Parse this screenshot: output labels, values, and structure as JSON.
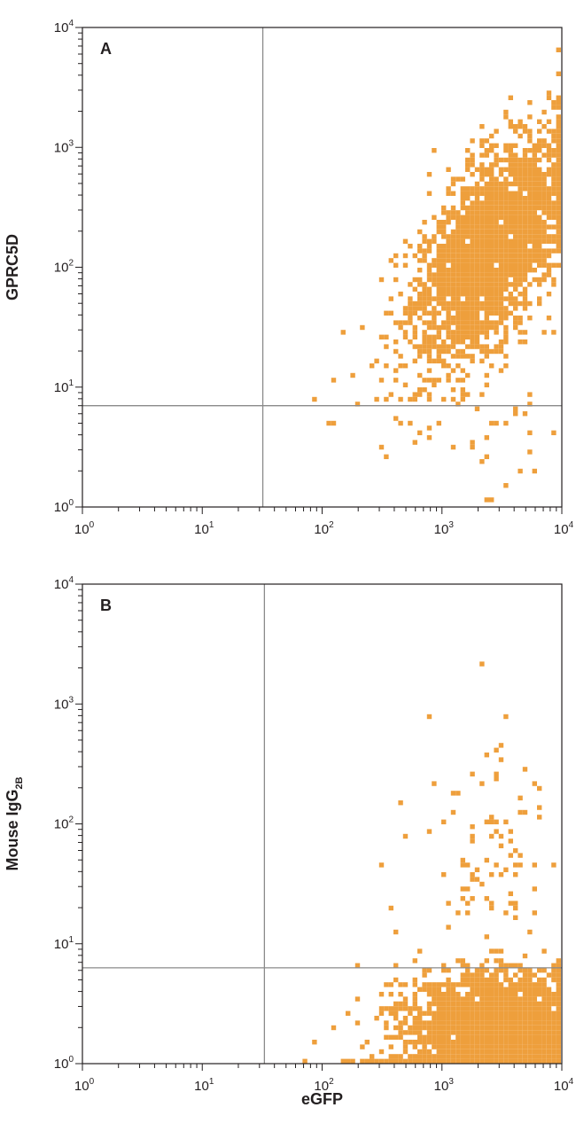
{
  "chart_data": [
    {
      "panel_label": "A",
      "type": "scatter",
      "plot_style": "flow cytometry density dot plot",
      "xscale": "log",
      "yscale": "log",
      "xlim": [
        1,
        10000
      ],
      "ylim": [
        1,
        10000
      ],
      "xticks": [
        1,
        10,
        100,
        1000,
        10000
      ],
      "yticks": [
        1,
        10,
        100,
        1000,
        10000
      ],
      "tick_labels": [
        {
          "base": "10",
          "exp": "0"
        },
        {
          "base": "10",
          "exp": "1"
        },
        {
          "base": "10",
          "exp": "2"
        },
        {
          "base": "10",
          "exp": "3"
        },
        {
          "base": "10",
          "exp": "4"
        }
      ],
      "xlabel": "",
      "ylabel": "GPRC5D",
      "ylabel_sub": "",
      "quadrant_gates": {
        "x": 32,
        "y": 7
      },
      "dot_color": "#ee9f3c",
      "populations": [
        {
          "name_hidden": true,
          "center_x_log": 3.4,
          "center_y_log": 2.15,
          "spread_x": 0.32,
          "spread_y": 0.38,
          "slope": 0.85,
          "count": 2600,
          "xmax_log": 4.0,
          "ymin_log": 0.9
        },
        {
          "center_x_log": 3.2,
          "center_y_log": 0.6,
          "spread_x": 0.4,
          "spread_y": 0.25,
          "slope": 0,
          "count": 40,
          "xmax_log": 4.0,
          "ymin_log": 0.0
        }
      ],
      "sparse_points": [
        [
          130,
          5
        ],
        [
          110,
          4.9
        ],
        [
          200,
          7.5
        ],
        [
          300,
          3.2
        ],
        [
          180,
          12
        ],
        [
          250,
          15
        ],
        [
          150,
          28
        ],
        [
          90,
          7.6
        ],
        [
          120,
          11
        ],
        [
          350,
          22
        ]
      ]
    },
    {
      "panel_label": "B",
      "type": "scatter",
      "plot_style": "flow cytometry density dot plot",
      "xscale": "log",
      "yscale": "log",
      "xlim": [
        1,
        10000
      ],
      "ylim": [
        1,
        10000
      ],
      "xticks": [
        1,
        10,
        100,
        1000,
        10000
      ],
      "yticks": [
        1,
        10,
        100,
        1000,
        10000
      ],
      "tick_labels": [
        {
          "base": "10",
          "exp": "0"
        },
        {
          "base": "10",
          "exp": "1"
        },
        {
          "base": "10",
          "exp": "2"
        },
        {
          "base": "10",
          "exp": "3"
        },
        {
          "base": "10",
          "exp": "4"
        }
      ],
      "xlabel": "eGFP",
      "ylabel": "Mouse IgG",
      "ylabel_sub": "2B",
      "quadrant_gates": {
        "x": 33,
        "y": 6.3
      },
      "dot_color": "#ee9f3c",
      "populations": [
        {
          "center_x_log": 3.5,
          "center_y_log": 0.2,
          "spread_x": 0.35,
          "spread_y": 0.3,
          "slope": 0,
          "count": 3200,
          "xmax_log": 4.0,
          "ymax_log": 0.85,
          "ymin_log": 0.0
        },
        {
          "center_x_log": 3.4,
          "center_y_log": 1.7,
          "spread_x": 0.28,
          "spread_y": 0.45,
          "slope": 0,
          "count": 90,
          "xmax_log": 4.0,
          "ymin_log": 0.9
        },
        {
          "center_x_log": 2.75,
          "center_y_log": 0.35,
          "spread_x": 0.25,
          "spread_y": 0.25,
          "slope": 0,
          "count": 90,
          "xmax_log": 3.1,
          "ymin_log": 0.0
        }
      ],
      "sparse_points": [
        [
          70,
          1.05
        ],
        [
          90,
          1.5
        ],
        [
          130,
          2
        ],
        [
          200,
          3.5
        ],
        [
          300,
          44
        ],
        [
          400,
          12
        ],
        [
          360,
          20
        ],
        [
          500,
          80
        ],
        [
          800,
          780
        ],
        [
          3500,
          780
        ]
      ]
    }
  ]
}
